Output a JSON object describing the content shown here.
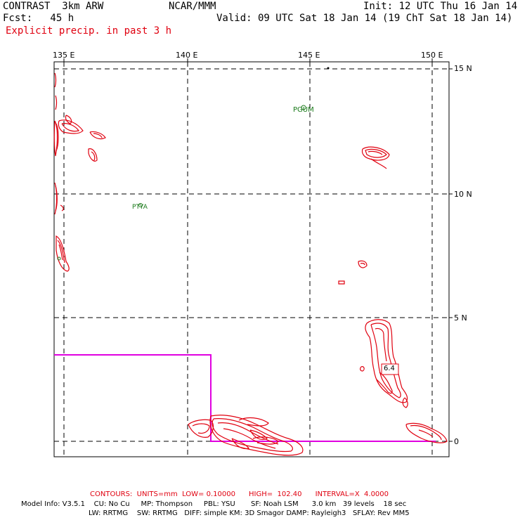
{
  "header": {
    "model": "CONTRAST  3km ARW",
    "center": "NCAR/MMM",
    "init": "Init: 12 UTC Thu 16 Jan 14",
    "fcst": "Fcst:   45 h",
    "valid": "Valid: 09 UTC Sat 18 Jan 14 (19 ChT Sat 18 Jan 14)",
    "field": "Explicit precip. in past 3 h"
  },
  "map": {
    "lon_ticks": [
      "135 E",
      "140 E",
      "145 E",
      "150 E"
    ],
    "lat_ticks": [
      "15 N",
      "10 N",
      "5 N",
      "0"
    ],
    "stations": [
      "PGUM",
      "PTYA"
    ],
    "max_label": "6.4",
    "colors": {
      "contour": "#e0000f",
      "domain_box": "#e000e0",
      "station": "#1a7a1a",
      "grid": "#000000"
    }
  },
  "footer": {
    "contours": "CONTOURS:  UNITS=mm  LOW= 0.10000      HIGH=  102.40      INTERVAL=X  4.0000",
    "info1": "Model Info: V3.5.1    CU: No Cu     MP: Thompson     PBL: YSU       SF: Noah LSM      3.0 km   39 levels    18 sec",
    "info2": "LW: RRTMG    SW: RRTMG   DIFF: simple KM: 3D Smagor DAMP: Rayleigh3   SFLAY: Rev MM5"
  }
}
